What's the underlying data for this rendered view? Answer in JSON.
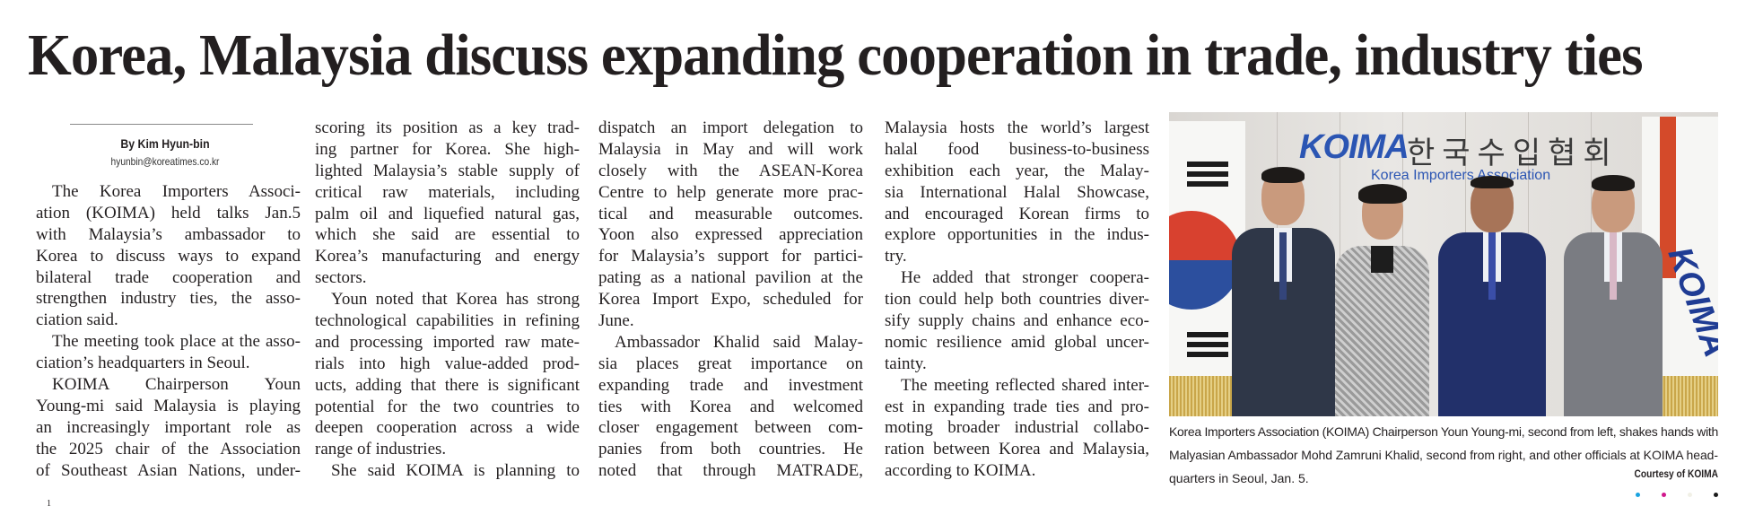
{
  "headline": "Korea, Malaysia discuss expanding cooperation in trade, industry ties",
  "byline": {
    "author": "By Kim Hyun-bin",
    "email": "hyunbin@koreatimes.co.kr"
  },
  "columns": [
    [
      {
        "text": "The Korea Importers Associ-",
        "indent": true
      },
      {
        "text": "ation (KOIMA) held talks Jan.5"
      },
      {
        "text": "with Malaysia’s ambassador to"
      },
      {
        "text": "Korea to discuss ways to expand"
      },
      {
        "text": "bilateral trade cooperation and"
      },
      {
        "text": "strengthen industry ties, the asso-"
      },
      {
        "text": "ciation said.",
        "last": true
      },
      {
        "text": "The meeting took place at the asso-",
        "indent": true
      },
      {
        "text": "ciation’s headquarters in Seoul.",
        "last": true
      },
      {
        "text": "KOIMA Chairperson Youn",
        "indent": true
      },
      {
        "text": "Young-mi said Malaysia is playing"
      },
      {
        "text": "an increasingly important role as"
      },
      {
        "text": "the 2025 chair of the Association"
      },
      {
        "text": "of Southeast Asian Nations, under-"
      }
    ],
    [
      {
        "text": "scoring its position as a key trad-"
      },
      {
        "text": "ing partner for Korea. She high-"
      },
      {
        "text": "lighted Malaysia’s stable supply of"
      },
      {
        "text": "critical raw materials, including"
      },
      {
        "text": "palm oil and liquefied natural gas,"
      },
      {
        "text": "which she said are essential to"
      },
      {
        "text": "Korea’s manufacturing and energy"
      },
      {
        "text": "sectors.",
        "last": true
      },
      {
        "text": "Youn noted that Korea has strong",
        "indent": true
      },
      {
        "text": "technological capabilities in refining"
      },
      {
        "text": "and processing imported raw mate-"
      },
      {
        "text": "rials into high value-added prod-"
      },
      {
        "text": "ucts, adding that there is significant"
      },
      {
        "text": "potential for the two countries to"
      },
      {
        "text": "deepen cooperation across a wide"
      },
      {
        "text": "range of industries.",
        "last": true
      },
      {
        "text": "She said KOIMA is planning to",
        "indent": true
      }
    ],
    [
      {
        "text": "dispatch an import delegation to"
      },
      {
        "text": "Malaysia in May and will work"
      },
      {
        "text": "closely with the ASEAN-Korea"
      },
      {
        "text": "Centre to help generate more prac-"
      },
      {
        "text": "tical and measurable outcomes."
      },
      {
        "text": "Yoon also expressed appreciation"
      },
      {
        "text": "for Malaysia’s support for partici-"
      },
      {
        "text": "pating as a national pavilion at the"
      },
      {
        "text": "Korea Import Expo, scheduled for"
      },
      {
        "text": "June.",
        "last": true
      },
      {
        "text": "Ambassador Khalid said Malay-",
        "indent": true
      },
      {
        "text": "sia places great importance on"
      },
      {
        "text": "expanding trade and investment"
      },
      {
        "text": "ties with Korea and welcomed"
      },
      {
        "text": "closer engagement between com-"
      },
      {
        "text": "panies from both countries. He"
      },
      {
        "text": "noted that through MATRADE,"
      }
    ],
    [
      {
        "text": "Malaysia hosts the world’s largest"
      },
      {
        "text": "halal food business-to-business"
      },
      {
        "text": "exhibition each year, the Malay-"
      },
      {
        "text": "sia International Halal Showcase,"
      },
      {
        "text": "and encouraged Korean firms to"
      },
      {
        "text": "explore opportunities in the indus-"
      },
      {
        "text": "try.",
        "last": true
      },
      {
        "text": "He added that stronger coopera-",
        "indent": true
      },
      {
        "text": "tion could help both countries diver-"
      },
      {
        "text": "sify supply chains and enhance eco-"
      },
      {
        "text": "nomic resilience amid global uncer-"
      },
      {
        "text": "tainty.",
        "last": true
      },
      {
        "text": "The meeting reflected shared inter-",
        "indent": true
      },
      {
        "text": "est in expanding trade ties and pro-"
      },
      {
        "text": "moting broader industrial collabo-"
      },
      {
        "text": "ration between Korea and Malaysia,"
      },
      {
        "text": "according to KOIMA.",
        "last": true
      }
    ]
  ],
  "photo": {
    "wall_logo": "KOIMA",
    "wall_korean": "한국수입협회",
    "wall_english": "Korea Importers Association",
    "flag_logo": "KOIMA"
  },
  "caption": [
    {
      "text": "Korea Importers Association (KOIMA) Chairperson Youn Young-mi, second from left, shakes hands with"
    },
    {
      "text": "Malyasian Ambassador Mohd Zamruni Khalid, second from right, and other officials at KOIMA head-"
    },
    {
      "text": "quarters in Seoul, Jan. 5.",
      "last": true
    }
  ],
  "credit": "Courtesy of KOIMA",
  "page_number": "1",
  "registration_colors": [
    "#1aa3e0",
    "#d0188c",
    "#f1f0e6",
    "#1a1a1a"
  ]
}
